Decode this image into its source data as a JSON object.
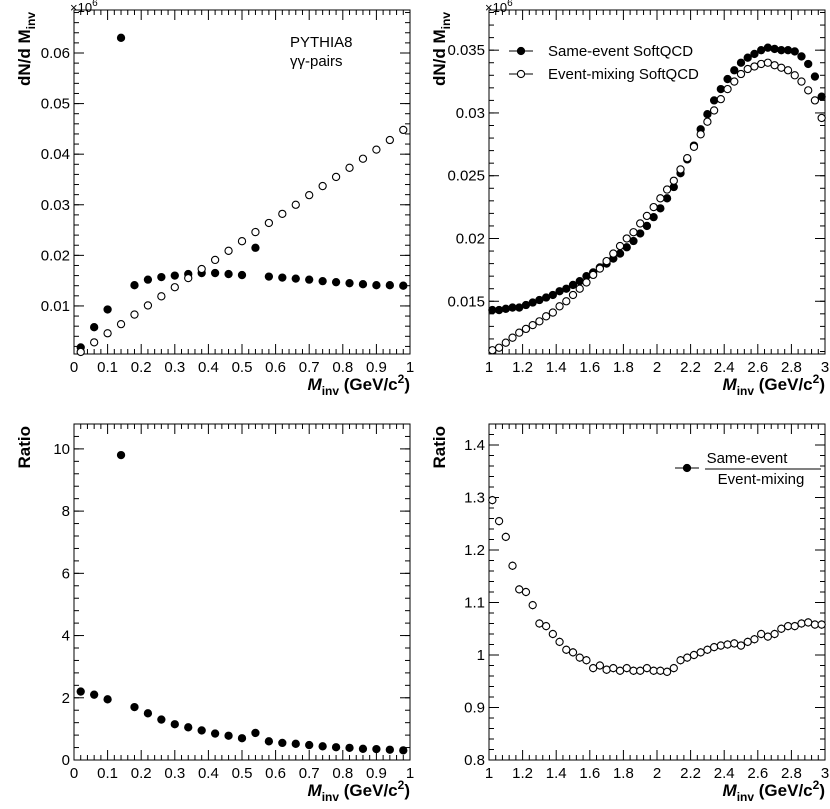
{
  "chart_data": [
    {
      "id": "top-left",
      "type": "scatter",
      "title": "",
      "annotation_lines": [
        "PYTHIA8",
        "γγ-pairs"
      ],
      "multiplier": "×10",
      "multiplier_exp": "6",
      "ylabel": "dN/d M",
      "ylabel_sub": "inv",
      "xlabel": "M",
      "xlabel_sub": "inv",
      "xlabel_unit": " (GeV/c",
      "xlabel_unit_sup": "2",
      "xlabel_unit_end": ")",
      "xlim": [
        0,
        1
      ],
      "ylim": [
        0.0005,
        0.0685
      ],
      "xticks": [
        0,
        0.1,
        0.2,
        0.3,
        0.4,
        0.5,
        0.6,
        0.7,
        0.8,
        0.9,
        1
      ],
      "xtick_labels": [
        "0",
        "0.1",
        "0.2",
        "0.3",
        "0.4",
        "0.5",
        "0.6",
        "0.7",
        "0.8",
        "0.9",
        "1"
      ],
      "yticks": [
        0.01,
        0.02,
        0.03,
        0.04,
        0.05,
        0.06
      ],
      "ytick_labels": [
        "0.01",
        "0.02",
        "0.03",
        "0.04",
        "0.05",
        "0.06"
      ],
      "series": [
        {
          "name": "Same-event SoftQCD",
          "marker": "filled",
          "xerr": 0.01,
          "x": [
            0.02,
            0.06,
            0.1,
            0.14,
            0.18,
            0.22,
            0.26,
            0.3,
            0.34,
            0.38,
            0.42,
            0.46,
            0.5,
            0.54,
            0.58,
            0.62,
            0.66,
            0.7,
            0.74,
            0.78,
            0.82,
            0.86,
            0.9,
            0.94,
            0.98
          ],
          "y": [
            0.0018,
            0.0058,
            0.0093,
            0.063,
            0.0141,
            0.0152,
            0.0157,
            0.016,
            0.0163,
            0.0165,
            0.0165,
            0.0163,
            0.0161,
            0.0215,
            0.0158,
            0.0156,
            0.0154,
            0.0152,
            0.0149,
            0.0147,
            0.0145,
            0.0143,
            0.0141,
            0.0141,
            0.014
          ]
        },
        {
          "name": "Event-mixing SoftQCD",
          "marker": "open",
          "xerr": 0,
          "x": [
            0.02,
            0.06,
            0.1,
            0.14,
            0.18,
            0.22,
            0.26,
            0.3,
            0.34,
            0.38,
            0.42,
            0.46,
            0.5,
            0.54,
            0.58,
            0.62,
            0.66,
            0.7,
            0.74,
            0.78,
            0.82,
            0.86,
            0.9,
            0.94,
            0.98
          ],
          "y": [
            0.0009,
            0.0028,
            0.0046,
            0.0064,
            0.0083,
            0.0101,
            0.0119,
            0.0137,
            0.0155,
            0.0173,
            0.0191,
            0.0209,
            0.0228,
            0.0246,
            0.0264,
            0.0282,
            0.03,
            0.0319,
            0.0337,
            0.0355,
            0.0373,
            0.0391,
            0.0409,
            0.0428,
            0.0448
          ]
        }
      ]
    },
    {
      "id": "top-right",
      "type": "scatter",
      "title": "",
      "multiplier": "×10",
      "multiplier_exp": "6",
      "ylabel": "dN/d M",
      "ylabel_sub": "inv",
      "xlabel": "M",
      "xlabel_sub": "inv",
      "xlabel_unit": " (GeV/c",
      "xlabel_unit_sup": "2",
      "xlabel_unit_end": ")",
      "xlim": [
        1,
        3
      ],
      "ylim": [
        0.0108,
        0.0382
      ],
      "xticks": [
        1,
        1.2,
        1.4,
        1.6,
        1.8,
        2,
        2.2,
        2.4,
        2.6,
        2.8,
        3
      ],
      "xtick_labels": [
        "1",
        "1.2",
        "1.4",
        "1.6",
        "1.8",
        "2",
        "2.2",
        "2.4",
        "2.6",
        "2.8",
        "3"
      ],
      "yticks": [
        0.015,
        0.02,
        0.025,
        0.03,
        0.035
      ],
      "ytick_labels": [
        "0.015",
        "0.02",
        "0.025",
        "0.03",
        "0.035"
      ],
      "legend": {
        "position": "top-left",
        "entries": [
          {
            "label": "Same-event SoftQCD",
            "marker": "filled"
          },
          {
            "label": "Event-mixing SoftQCD",
            "marker": "open"
          }
        ]
      },
      "series": [
        {
          "name": "Same-event SoftQCD",
          "marker": "filled",
          "xerr": 0,
          "x": [
            1.02,
            1.06,
            1.1,
            1.14,
            1.18,
            1.22,
            1.26,
            1.3,
            1.34,
            1.38,
            1.42,
            1.46,
            1.5,
            1.54,
            1.58,
            1.62,
            1.66,
            1.7,
            1.74,
            1.78,
            1.82,
            1.86,
            1.9,
            1.94,
            1.98,
            2.02,
            2.06,
            2.1,
            2.14,
            2.18,
            2.22,
            2.26,
            2.3,
            2.34,
            2.38,
            2.42,
            2.46,
            2.5,
            2.54,
            2.58,
            2.62,
            2.66,
            2.7,
            2.74,
            2.78,
            2.82,
            2.86,
            2.9,
            2.94,
            2.98
          ],
          "y": [
            0.0143,
            0.0143,
            0.0144,
            0.0145,
            0.0145,
            0.0147,
            0.0149,
            0.0151,
            0.0153,
            0.0155,
            0.0158,
            0.016,
            0.0163,
            0.0166,
            0.017,
            0.0173,
            0.0177,
            0.018,
            0.0184,
            0.0188,
            0.0193,
            0.0198,
            0.0204,
            0.021,
            0.0217,
            0.0224,
            0.0232,
            0.0241,
            0.0252,
            0.0263,
            0.0274,
            0.0287,
            0.0299,
            0.031,
            0.0319,
            0.0327,
            0.0334,
            0.034,
            0.0344,
            0.0347,
            0.035,
            0.0352,
            0.0351,
            0.035,
            0.035,
            0.0349,
            0.0345,
            0.0339,
            0.0329,
            0.0313
          ]
        },
        {
          "name": "Event-mixing SoftQCD",
          "marker": "open",
          "xerr": 0,
          "x": [
            1.02,
            1.06,
            1.1,
            1.14,
            1.18,
            1.22,
            1.26,
            1.3,
            1.34,
            1.38,
            1.42,
            1.46,
            1.5,
            1.54,
            1.58,
            1.62,
            1.66,
            1.7,
            1.74,
            1.78,
            1.82,
            1.86,
            1.9,
            1.94,
            1.98,
            2.02,
            2.06,
            2.1,
            2.14,
            2.18,
            2.22,
            2.26,
            2.3,
            2.34,
            2.38,
            2.42,
            2.46,
            2.5,
            2.54,
            2.58,
            2.62,
            2.66,
            2.7,
            2.74,
            2.78,
            2.82,
            2.86,
            2.9,
            2.94,
            2.98
          ],
          "y": [
            0.0111,
            0.0113,
            0.0117,
            0.0121,
            0.0125,
            0.0128,
            0.0131,
            0.0134,
            0.0138,
            0.0141,
            0.0146,
            0.015,
            0.0155,
            0.016,
            0.0165,
            0.0171,
            0.0176,
            0.0182,
            0.0188,
            0.0194,
            0.02,
            0.0205,
            0.0212,
            0.0218,
            0.0225,
            0.0232,
            0.0239,
            0.0246,
            0.0255,
            0.0264,
            0.0273,
            0.0283,
            0.0293,
            0.0302,
            0.0311,
            0.0319,
            0.0325,
            0.0331,
            0.0335,
            0.0337,
            0.0339,
            0.034,
            0.0338,
            0.0336,
            0.0334,
            0.033,
            0.0325,
            0.0318,
            0.031,
            0.0296
          ]
        }
      ]
    },
    {
      "id": "bottom-left",
      "type": "scatter",
      "title": "",
      "ylabel": "Ratio",
      "xlabel": "M",
      "xlabel_sub": "inv",
      "xlabel_unit": " (GeV/c",
      "xlabel_unit_sup": "2",
      "xlabel_unit_end": ")",
      "xlim": [
        0,
        1
      ],
      "ylim": [
        0,
        10.8
      ],
      "xticks": [
        0,
        0.1,
        0.2,
        0.3,
        0.4,
        0.5,
        0.6,
        0.7,
        0.8,
        0.9,
        1
      ],
      "xtick_labels": [
        "0",
        "0.1",
        "0.2",
        "0.3",
        "0.4",
        "0.5",
        "0.6",
        "0.7",
        "0.8",
        "0.9",
        "1"
      ],
      "yticks": [
        0,
        2,
        4,
        6,
        8,
        10
      ],
      "ytick_labels": [
        "0",
        "2",
        "4",
        "6",
        "8",
        "10"
      ],
      "series": [
        {
          "name": "Ratio",
          "marker": "filled",
          "xerr": 0.01,
          "x": [
            0.02,
            0.06,
            0.1,
            0.14,
            0.18,
            0.22,
            0.26,
            0.3,
            0.34,
            0.38,
            0.42,
            0.46,
            0.5,
            0.54,
            0.58,
            0.62,
            0.66,
            0.7,
            0.74,
            0.78,
            0.82,
            0.86,
            0.9,
            0.94,
            0.98
          ],
          "y": [
            2.2,
            2.1,
            1.95,
            9.8,
            1.7,
            1.5,
            1.3,
            1.15,
            1.05,
            0.95,
            0.85,
            0.78,
            0.7,
            0.87,
            0.6,
            0.55,
            0.52,
            0.48,
            0.44,
            0.41,
            0.39,
            0.36,
            0.35,
            0.33,
            0.31
          ]
        }
      ]
    },
    {
      "id": "bottom-right",
      "type": "scatter",
      "title": "",
      "ylabel": "Ratio",
      "xlabel": "M",
      "xlabel_sub": "inv",
      "xlabel_unit": " (GeV/c",
      "xlabel_unit_sup": "2",
      "xlabel_unit_end": ")",
      "xlim": [
        1,
        3
      ],
      "ylim": [
        0.8,
        1.44
      ],
      "xticks": [
        1,
        1.2,
        1.4,
        1.6,
        1.8,
        2,
        2.2,
        2.4,
        2.6,
        2.8,
        3
      ],
      "xtick_labels": [
        "1",
        "1.2",
        "1.4",
        "1.6",
        "1.8",
        "2",
        "2.2",
        "2.4",
        "2.6",
        "2.8",
        "3"
      ],
      "yticks": [
        0.8,
        0.9,
        1,
        1.1,
        1.2,
        1.3,
        1.4
      ],
      "ytick_labels": [
        "0.8",
        "0.9",
        "1",
        "1.1",
        "1.2",
        "1.3",
        "1.4"
      ],
      "legend": {
        "position": "top-right",
        "entries": [
          {
            "label_num": "Same-event",
            "label_den": "Event-mixing",
            "marker": "filled"
          }
        ]
      },
      "series": [
        {
          "name": "Same-event / Event-mixing",
          "marker": "open",
          "xerr": 0,
          "yerr": 0.008,
          "x": [
            1.02,
            1.06,
            1.1,
            1.14,
            1.18,
            1.22,
            1.26,
            1.3,
            1.34,
            1.38,
            1.42,
            1.46,
            1.5,
            1.54,
            1.58,
            1.62,
            1.66,
            1.7,
            1.74,
            1.78,
            1.82,
            1.86,
            1.9,
            1.94,
            1.98,
            2.02,
            2.06,
            2.1,
            2.14,
            2.18,
            2.22,
            2.26,
            2.3,
            2.34,
            2.38,
            2.42,
            2.46,
            2.5,
            2.54,
            2.58,
            2.62,
            2.66,
            2.7,
            2.74,
            2.78,
            2.82,
            2.86,
            2.9,
            2.94,
            2.98
          ],
          "y": [
            1.295,
            1.255,
            1.225,
            1.17,
            1.125,
            1.12,
            1.095,
            1.06,
            1.055,
            1.04,
            1.025,
            1.01,
            1.005,
            0.995,
            0.99,
            0.975,
            0.98,
            0.972,
            0.975,
            0.97,
            0.975,
            0.97,
            0.97,
            0.975,
            0.97,
            0.97,
            0.968,
            0.975,
            0.99,
            0.995,
            1.0,
            1.005,
            1.01,
            1.015,
            1.018,
            1.02,
            1.022,
            1.018,
            1.025,
            1.03,
            1.04,
            1.035,
            1.04,
            1.05,
            1.055,
            1.055,
            1.06,
            1.062,
            1.058,
            1.058
          ]
        }
      ]
    }
  ]
}
